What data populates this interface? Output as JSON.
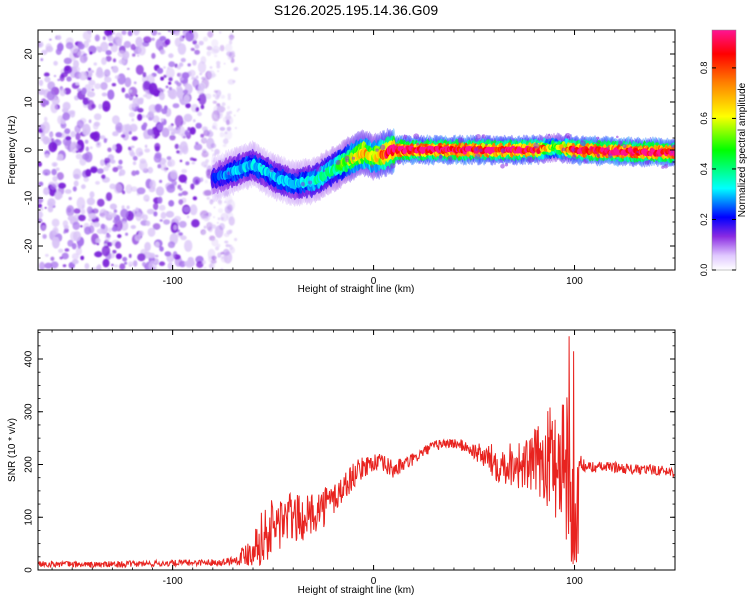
{
  "figure": {
    "title": "S126.2025.195.14.36.G09"
  },
  "chart_data": [
    {
      "type": "heatmap",
      "name": "spectrogram",
      "xlabel": "Height of straight line (km)",
      "ylabel": "Frequency (Hz)",
      "xlim": [
        -167,
        150
      ],
      "ylim": [
        -25,
        25
      ],
      "x_ticks": [
        -100,
        0,
        100
      ],
      "x_tick_labels": [
        "-100",
        "0",
        "100"
      ],
      "y_ticks": [
        -20,
        -10,
        0,
        10,
        20
      ],
      "y_tick_labels": [
        "-20",
        "-10",
        "0",
        "10",
        "20"
      ],
      "grid": false,
      "noise_region": {
        "x_range": [
          -167,
          -70
        ],
        "y_range": [
          -25,
          25
        ],
        "typical_amplitude": 0.15
      },
      "signal_track": {
        "description": "frequency vs height of dominant line",
        "x": [
          -80,
          -70,
          -60,
          -50,
          -40,
          -30,
          -20,
          -10,
          -5,
          0,
          5,
          10,
          20,
          40,
          60,
          80,
          90,
          100,
          120,
          150
        ],
        "y": [
          -6,
          -4.5,
          -3,
          -5.5,
          -7,
          -6.5,
          -4,
          -1.5,
          -0.5,
          -1.5,
          -0.8,
          0,
          0,
          0,
          0,
          0,
          0.5,
          0,
          -0.3,
          -0.5
        ],
        "amplitude": [
          0.2,
          0.3,
          0.3,
          0.3,
          0.3,
          0.35,
          0.4,
          0.6,
          0.7,
          0.6,
          0.8,
          0.95,
          0.95,
          0.95,
          0.9,
          0.9,
          0.5,
          0.9,
          0.95,
          0.95
        ]
      },
      "colorbar": {
        "label": "Normalized spectral amplitude",
        "range": [
          0,
          0.95
        ],
        "ticks": [
          0.0,
          0.2,
          0.4,
          0.6,
          0.8
        ],
        "tick_labels": [
          "0.0",
          "0.2",
          "0.4",
          "0.6",
          "0.8"
        ],
        "colors": [
          "#ffffff",
          "#9400d3",
          "#0000ff",
          "#00ffff",
          "#00ff00",
          "#ffff00",
          "#ff7f00",
          "#ff0000",
          "#ff1493"
        ]
      }
    },
    {
      "type": "line",
      "name": "snr",
      "xlabel": "Height of straight line (km)",
      "ylabel": "SNR (10 * v/v)",
      "xlim": [
        -167,
        150
      ],
      "ylim": [
        0,
        455
      ],
      "x_ticks": [
        -100,
        0,
        100
      ],
      "x_tick_labels": [
        "-100",
        "0",
        "100"
      ],
      "y_ticks": [
        0,
        100,
        200,
        300,
        400
      ],
      "y_tick_labels": [
        "0",
        "100",
        "200",
        "300",
        "400"
      ],
      "grid": false,
      "series": [
        {
          "color": "#e8231f",
          "x": [
            -167,
            -140,
            -110,
            -90,
            -75,
            -68,
            -62,
            -56,
            -50,
            -45,
            -40,
            -35,
            -30,
            -25,
            -20,
            -15,
            -10,
            -5,
            0,
            5,
            10,
            15,
            20,
            25,
            30,
            35,
            40,
            45,
            50,
            55,
            60,
            65,
            70,
            75,
            80,
            85,
            90,
            95,
            98,
            100,
            102,
            105,
            110,
            120,
            130,
            140,
            150
          ],
          "y": [
            12,
            10,
            12,
            14,
            15,
            20,
            35,
            60,
            80,
            95,
            100,
            95,
            110,
            120,
            135,
            155,
            180,
            195,
            205,
            200,
            190,
            200,
            210,
            225,
            235,
            240,
            240,
            235,
            225,
            215,
            205,
            200,
            205,
            195,
            205,
            210,
            215,
            210,
            170,
            60,
            210,
            195,
            195,
            195,
            190,
            190,
            185
          ],
          "spread": [
            6,
            6,
            6,
            6,
            6,
            10,
            30,
            50,
            60,
            55,
            50,
            40,
            40,
            40,
            35,
            30,
            25,
            20,
            18,
            18,
            18,
            14,
            12,
            10,
            10,
            10,
            10,
            12,
            15,
            25,
            35,
            40,
            45,
            50,
            60,
            80,
            120,
            150,
            130,
            60,
            20,
            12,
            10,
            10,
            10,
            10,
            10
          ]
        }
      ]
    }
  ]
}
